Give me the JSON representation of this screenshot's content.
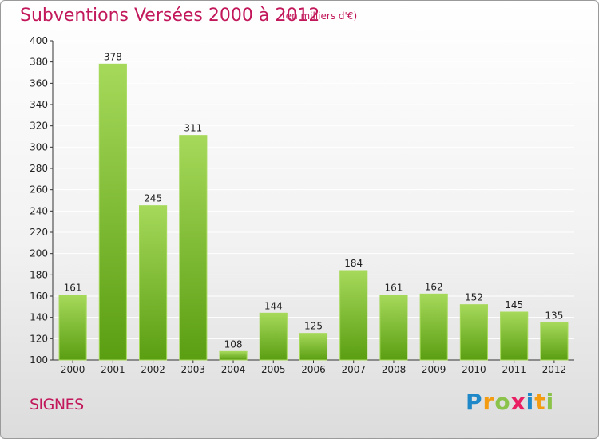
{
  "header": {
    "title": "Subventions Versées 2000 à 2012",
    "subtitle": "(en milliers d'€)"
  },
  "footer": {
    "commune": "SIGNES",
    "logo": {
      "letters": [
        "P",
        "r",
        "o",
        "x",
        "i",
        "t",
        "i"
      ],
      "colors": [
        "#1e88c8",
        "#f39c12",
        "#8bc34a",
        "#e91e63",
        "#1e88c8",
        "#f39c12",
        "#8bc34a"
      ]
    }
  },
  "colors": {
    "title": "#c2185b",
    "bar_light": "#a6d95a",
    "bar_dark": "#5a9e12",
    "grid": "#ffffff"
  },
  "chart_data": {
    "type": "bar",
    "categories": [
      "2000",
      "2001",
      "2002",
      "2003",
      "2004",
      "2005",
      "2006",
      "2007",
      "2008",
      "2009",
      "2010",
      "2011",
      "2012"
    ],
    "values": [
      161,
      378,
      245,
      311,
      108,
      144,
      125,
      184,
      161,
      162,
      152,
      145,
      135
    ],
    "data_labels": [
      "161",
      "378",
      "245",
      "311",
      "108",
      "144",
      "125",
      "184",
      "161",
      "162",
      "152",
      "145",
      "135"
    ],
    "ylim": [
      100,
      400
    ],
    "yticks": [
      100,
      120,
      140,
      160,
      180,
      200,
      220,
      240,
      260,
      280,
      300,
      320,
      340,
      360,
      380,
      400
    ],
    "ytick_labels": [
      "100",
      "120",
      "140",
      "160",
      "180",
      "200",
      "220",
      "240",
      "260",
      "280",
      "300",
      "320",
      "340",
      "360",
      "380",
      "400"
    ],
    "title": "Subventions Versées 2000 à 2012",
    "xlabel": "",
    "ylabel": "",
    "grid": true
  }
}
